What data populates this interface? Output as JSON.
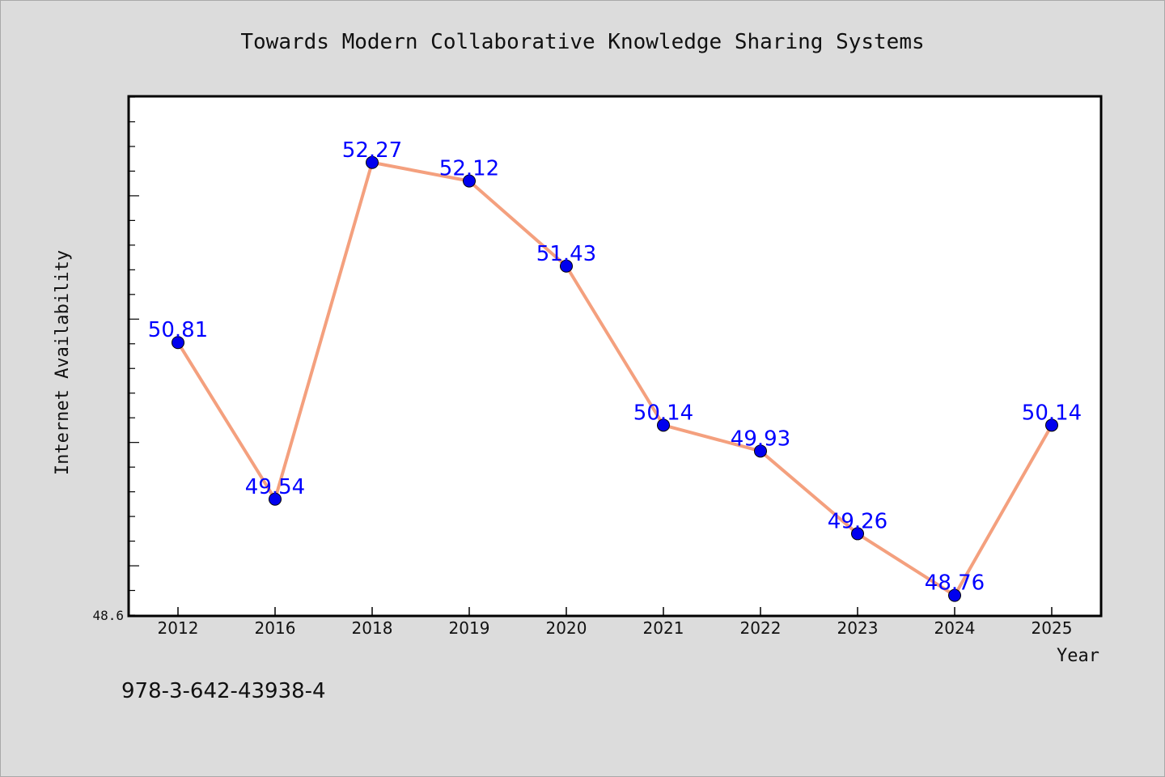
{
  "chart_data": {
    "type": "line",
    "title": "Towards Modern Collaborative Knowledge Sharing Systems",
    "xlabel": "Year",
    "ylabel": "Internet Availability",
    "categories": [
      "2012",
      "2016",
      "2018",
      "2019",
      "2020",
      "2021",
      "2022",
      "2023",
      "2024",
      "2025"
    ],
    "series": [
      {
        "values": [
          50.81,
          49.54,
          52.27,
          52.12,
          51.43,
          50.14,
          49.93,
          49.26,
          48.76,
          50.14
        ],
        "data_labels": [
          "50.81",
          "49.54",
          "52.27",
          "52.12",
          "51.43",
          "50.14",
          "49.93",
          "49.26",
          "48.76",
          "50.14"
        ],
        "line_color": "#f4a07e",
        "marker_color": "#0000ee"
      }
    ],
    "ylim": [
      48.6,
      52.8
    ],
    "y_tick_label_shown": "48.6",
    "grid": false,
    "legend": "none",
    "data_label_color": "#0000ff",
    "background_color": "#dcdcdc",
    "plot_background_color": "#ffffff"
  },
  "footer": {
    "isbn": "978-3-642-43938-4"
  }
}
